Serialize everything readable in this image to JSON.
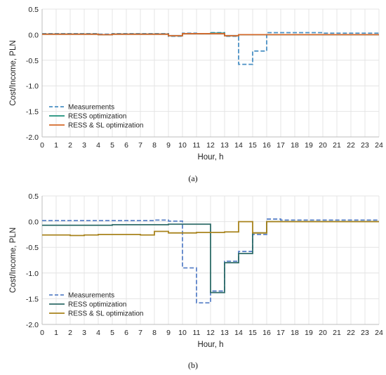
{
  "chart_data": [
    {
      "type": "line",
      "step": true,
      "caption": "(a)",
      "xlabel": "Hour, h",
      "ylabel": "Cost/Income, PLN",
      "xlim": [
        0,
        24
      ],
      "ylim": [
        -2.0,
        0.5
      ],
      "xticks": [
        "0",
        "1",
        "2",
        "3",
        "4",
        "5",
        "6",
        "7",
        "8",
        "9",
        "10",
        "11",
        "12",
        "13",
        "14",
        "15",
        "16",
        "17",
        "18",
        "19",
        "20",
        "21",
        "22",
        "23",
        "24"
      ],
      "yticks": [
        "0.5",
        "0.0",
        "-0.5",
        "-1.0",
        "-1.5",
        "-2.0"
      ],
      "grid": true,
      "legend_position": "lower-left",
      "x": [
        0,
        1,
        2,
        3,
        4,
        5,
        6,
        7,
        8,
        9,
        10,
        11,
        12,
        13,
        14,
        15,
        16,
        17,
        18,
        19,
        20,
        21,
        22,
        23
      ],
      "series": [
        {
          "name": "Measurements",
          "color": "#4a90c4",
          "style": "dashed",
          "values": [
            0.02,
            0.02,
            0.02,
            0.02,
            0.01,
            0.02,
            0.02,
            0.02,
            0.02,
            -0.03,
            0.03,
            0.02,
            0.04,
            -0.03,
            -0.58,
            -0.32,
            0.04,
            0.04,
            0.04,
            0.04,
            0.03,
            0.03,
            0.03,
            0.03
          ]
        },
        {
          "name": "RESS optimization",
          "color": "#1b8f7a",
          "style": "solid",
          "values": [
            0.01,
            0.01,
            0.01,
            0.01,
            0.0,
            0.01,
            0.01,
            0.01,
            0.01,
            -0.02,
            0.02,
            0.02,
            0.03,
            -0.02,
            0.0,
            0.0,
            0.0,
            0.0,
            0.0,
            0.0,
            0.0,
            0.0,
            0.0,
            0.0
          ]
        },
        {
          "name": "RESS & SL optimization",
          "color": "#d4682a",
          "style": "solid",
          "values": [
            0.01,
            0.01,
            0.01,
            0.01,
            0.0,
            0.01,
            0.01,
            0.01,
            0.01,
            -0.02,
            0.02,
            0.02,
            0.02,
            -0.02,
            0.0,
            0.0,
            0.0,
            0.0,
            0.0,
            0.0,
            0.0,
            0.0,
            0.0,
            0.0
          ]
        }
      ]
    },
    {
      "type": "line",
      "step": true,
      "caption": "(b)",
      "xlabel": "Hour, h",
      "ylabel": "Cost/Income, PLN",
      "xlim": [
        0,
        24
      ],
      "ylim": [
        -2.0,
        0.5
      ],
      "xticks": [
        "0",
        "1",
        "2",
        "3",
        "4",
        "5",
        "6",
        "7",
        "8",
        "9",
        "10",
        "11",
        "12",
        "13",
        "14",
        "15",
        "16",
        "17",
        "18",
        "19",
        "20",
        "21",
        "22",
        "23",
        "24"
      ],
      "yticks": [
        "0.5",
        "0.0",
        "-0.5",
        "-1.0",
        "-1.5",
        "-2.0"
      ],
      "grid": true,
      "legend_position": "lower-left",
      "x": [
        0,
        1,
        2,
        3,
        4,
        5,
        6,
        7,
        8,
        9,
        10,
        11,
        12,
        13,
        14,
        15,
        16,
        17,
        18,
        19,
        20,
        21,
        22,
        23
      ],
      "series": [
        {
          "name": "Measurements",
          "color": "#5b82c8",
          "style": "dashed",
          "values": [
            0.02,
            0.02,
            0.02,
            0.02,
            0.02,
            0.02,
            0.02,
            0.02,
            0.03,
            0.01,
            -0.9,
            -1.58,
            -1.35,
            -0.77,
            -0.58,
            -0.25,
            0.05,
            0.03,
            0.03,
            0.03,
            0.03,
            0.03,
            0.03,
            0.03
          ]
        },
        {
          "name": "RESS optimization",
          "color": "#2e6b68",
          "style": "solid",
          "values": [
            -0.07,
            -0.07,
            -0.07,
            -0.07,
            -0.07,
            -0.06,
            -0.06,
            -0.06,
            -0.06,
            -0.05,
            -0.05,
            -0.05,
            -1.38,
            -0.8,
            -0.62,
            -0.22,
            0.0,
            0.0,
            0.0,
            0.0,
            0.0,
            0.0,
            0.0,
            0.0
          ]
        },
        {
          "name": "RESS & SL optimization",
          "color": "#a8831c",
          "style": "solid",
          "values": [
            -0.26,
            -0.26,
            -0.27,
            -0.26,
            -0.25,
            -0.25,
            -0.25,
            -0.26,
            -0.19,
            -0.22,
            -0.22,
            -0.21,
            -0.21,
            -0.2,
            0.0,
            -0.22,
            0.0,
            0.0,
            0.0,
            0.0,
            0.0,
            0.0,
            0.0,
            0.0
          ]
        }
      ]
    }
  ]
}
